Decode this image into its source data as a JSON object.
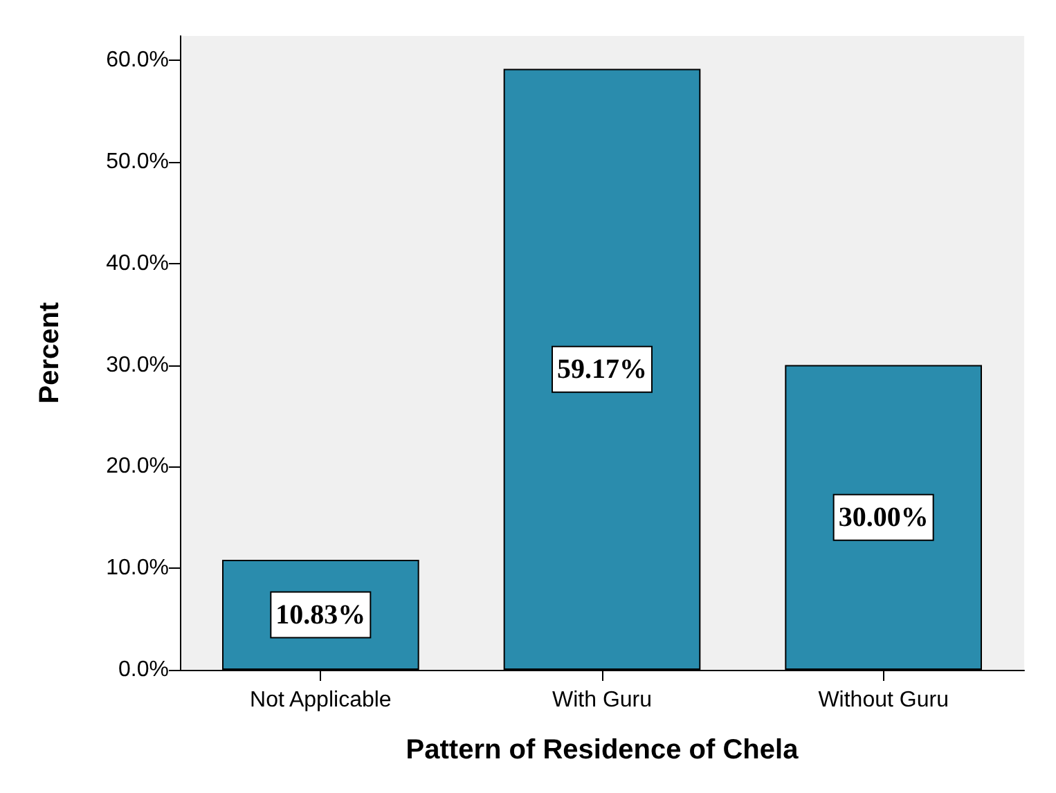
{
  "chart_data": {
    "type": "bar",
    "xlabel": "Pattern of Residence of Chela",
    "ylabel": "Percent",
    "categories": [
      "Not Applicable",
      "With Guru",
      "Without Guru"
    ],
    "values": [
      10.83,
      59.17,
      30.0
    ],
    "value_labels": [
      "10.83%",
      "59.17%",
      "30.00%"
    ],
    "color": "#2a8cad",
    "ylim": [
      0,
      62.4
    ],
    "yticks": [
      {
        "value": 0,
        "label": "0.0%"
      },
      {
        "value": 10,
        "label": "10.0%"
      },
      {
        "value": 20,
        "label": "20.0%"
      },
      {
        "value": 30,
        "label": "30.0%"
      },
      {
        "value": 40,
        "label": "40.0%"
      },
      {
        "value": 50,
        "label": "50.0%"
      },
      {
        "value": 60,
        "label": "60.0%"
      }
    ],
    "grid": false
  }
}
